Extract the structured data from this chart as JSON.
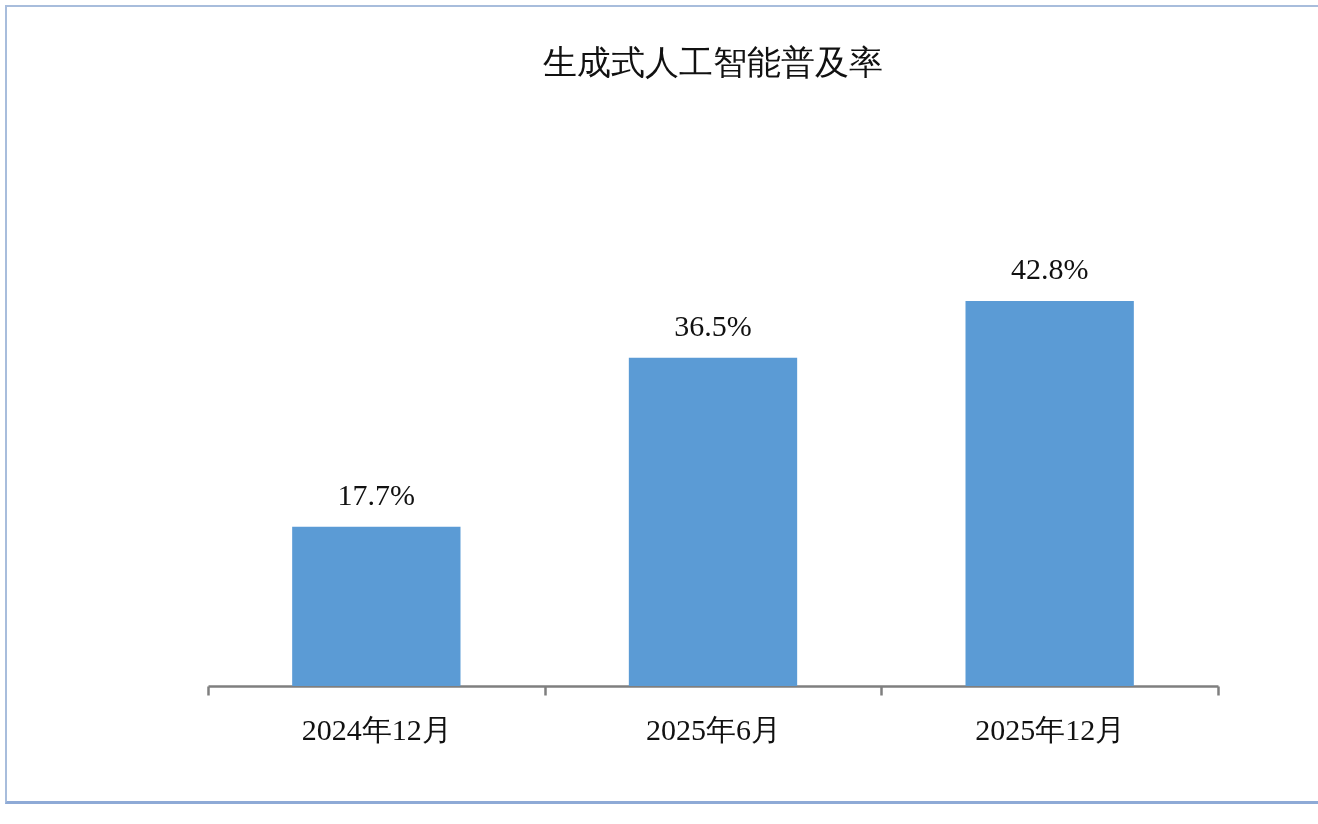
{
  "chart_data": {
    "type": "bar",
    "title": "生成式人工智能普及率",
    "categories": [
      "2024年12月",
      "2025年6月",
      "2025年12月"
    ],
    "values": [
      17.7,
      36.5,
      42.8
    ],
    "value_labels": [
      "17.7%",
      "36.5%",
      "42.8%"
    ],
    "color": "#5b9bd5"
  }
}
